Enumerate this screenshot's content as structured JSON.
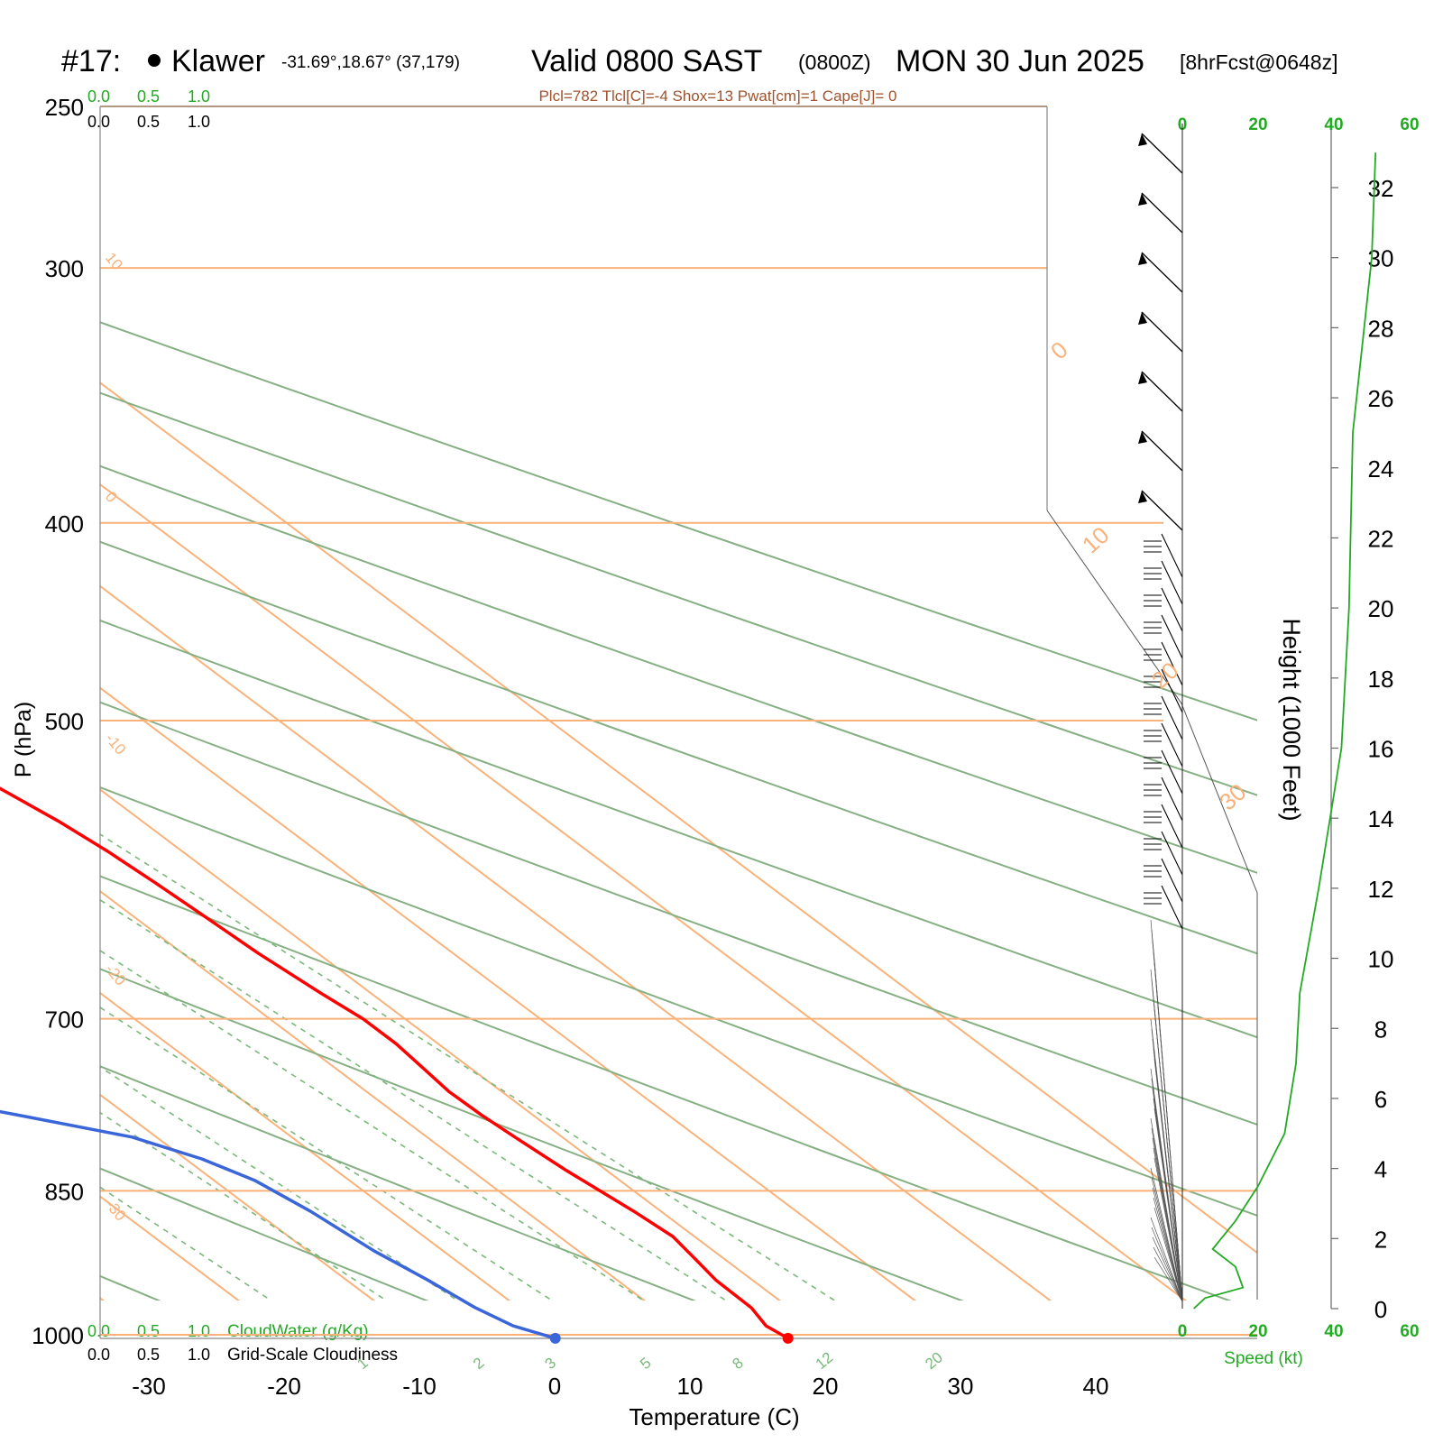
{
  "header": {
    "station_id": "#17:",
    "station_name": "Klawer",
    "coords": "-31.69°,18.67° (37,179)",
    "valid_main": "Valid 0800 SAST",
    "valid_z": "(0800Z)",
    "date": "MON 30 Jun 2025",
    "forecast": "[8hrFcst@0648z]",
    "indices": "Plcl=782 Tlcl[C]=-4 Shox=13 Pwat[cm]=1 Cape[J]= 0"
  },
  "colors": {
    "temperature": "#ff0000",
    "dewpoint": "#3a66d9",
    "isotherm": "#f8b27a",
    "dry_adiabat": "#86b084",
    "mixing_ratio": "#7ab87a",
    "speed_profile": "#22aa22",
    "cloud_labels": "#22aa22",
    "header_indices": "#a0522d"
  },
  "left_scale": {
    "green_ticks": [
      "0.0",
      "0.5",
      "1.0"
    ],
    "black_ticks": [
      "0.0",
      "0.5",
      "1.0"
    ],
    "cloudwater_label": "CloudWater (g/Kg)",
    "cloudiness_label": "Grid-Scale Cloudiness"
  },
  "chart_data": {
    "type": "line",
    "chart_kind": "skew-T log-P sounding",
    "xlabel": "Temperature (C)",
    "ylabel": "P (hPa)",
    "right_axis_label": "Height (1000 Feet)",
    "speed_axis_label": "Speed (kt)",
    "x_ticks": [
      -30,
      -20,
      -10,
      0,
      10,
      20,
      30,
      40
    ],
    "p_ticks": [
      250,
      300,
      400,
      500,
      700,
      850,
      1000
    ],
    "height_ticks": [
      0,
      2,
      4,
      6,
      8,
      10,
      12,
      14,
      16,
      18,
      20,
      22,
      24,
      26,
      28,
      30,
      32
    ],
    "speed_ticks": [
      0,
      20,
      40,
      60
    ],
    "ylim": [
      1050,
      250
    ],
    "isotherm_labels": [
      10,
      0,
      -10,
      -20,
      -30
    ],
    "isotherm_right_labels": [
      0,
      10,
      20,
      30
    ],
    "mixing_ratio_labels": [
      1,
      2,
      3,
      5,
      8,
      12,
      20
    ],
    "series": [
      {
        "name": "Temperature",
        "unit": "C",
        "points": [
          [
            1004,
            16.9
          ],
          [
            990,
            16.5
          ],
          [
            970,
            17.2
          ],
          [
            940,
            17.3
          ],
          [
            920,
            17.8
          ],
          [
            895,
            18.4
          ],
          [
            870,
            18.0
          ],
          [
            850,
            17.5
          ],
          [
            830,
            17.0
          ],
          [
            800,
            16.5
          ],
          [
            780,
            16.2
          ],
          [
            760,
            16.1
          ],
          [
            740,
            16.5
          ],
          [
            720,
            16.9
          ],
          [
            700,
            16.9
          ],
          [
            680,
            16.3
          ],
          [
            650,
            15.6
          ],
          [
            620,
            15.2
          ],
          [
            600,
            14.9
          ],
          [
            580,
            14.5
          ],
          [
            560,
            13.8
          ],
          [
            520,
            11.6
          ],
          [
            500,
            10.2
          ],
          [
            450,
            6.5
          ],
          [
            400,
            2.2
          ],
          [
            350,
            -3.8
          ],
          [
            300,
            -10.6
          ],
          [
            280,
            -14.2
          ],
          [
            265,
            -17.6
          ]
        ]
      },
      {
        "name": "Dewpoint",
        "unit": "C",
        "points": [
          [
            1004,
            -0.3
          ],
          [
            990,
            -2.2
          ],
          [
            970,
            -3.2
          ],
          [
            940,
            -4.0
          ],
          [
            910,
            -5.1
          ],
          [
            870,
            -5.9
          ],
          [
            840,
            -7.0
          ],
          [
            820,
            -8.8
          ],
          [
            800,
            -11.8
          ],
          [
            780,
            -18.2
          ],
          [
            760,
            -24.9
          ],
          [
            740,
            -26.4
          ],
          [
            720,
            -26.8
          ],
          [
            700,
            -18.9
          ],
          [
            680,
            -14.0
          ],
          [
            650,
            -15.3
          ],
          [
            620,
            -18.8
          ],
          [
            580,
            -24.1
          ],
          [
            560,
            -28.3
          ],
          [
            500,
            -32.5
          ],
          [
            460,
            -39.5
          ],
          [
            430,
            -44.0
          ],
          [
            400,
            -48.4
          ],
          [
            350,
            -49.7
          ],
          [
            320,
            -52.5
          ],
          [
            300,
            -56.0
          ],
          [
            280,
            -59.0
          ],
          [
            265,
            -62.0
          ]
        ]
      },
      {
        "name": "Speed",
        "unit": "kt",
        "points": [
          [
            0,
            3
          ],
          [
            0.3,
            6
          ],
          [
            0.6,
            16
          ],
          [
            1.2,
            14
          ],
          [
            1.7,
            8
          ],
          [
            2.5,
            14
          ],
          [
            3.5,
            20
          ],
          [
            5,
            27
          ],
          [
            7,
            30
          ],
          [
            9,
            31
          ],
          [
            12,
            36
          ],
          [
            16,
            42
          ],
          [
            20,
            44
          ],
          [
            25,
            45
          ],
          [
            30,
            50
          ],
          [
            33,
            51
          ]
        ]
      }
    ]
  }
}
